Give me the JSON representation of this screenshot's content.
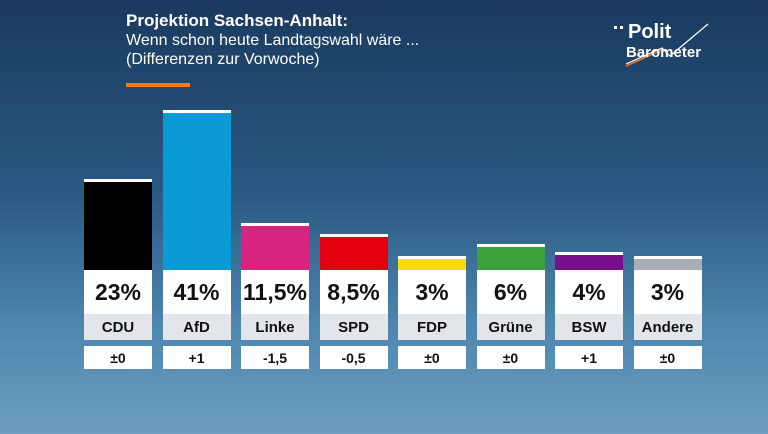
{
  "header": {
    "title": "Projektion Sachsen-Anhalt:",
    "subtitle_line1": "Wenn schon heute Landtagswahl wäre ...",
    "subtitle_line2": "(Differenzen zur Vorwoche)"
  },
  "logo": {
    "line1": "Polit",
    "line2": "Barometer",
    "accent_color": "#f07a1e"
  },
  "chart_data": {
    "type": "bar",
    "title": "Projektion Sachsen-Anhalt:",
    "categories": [
      "CDU",
      "AfD",
      "Linke",
      "SPD",
      "FDP",
      "Grüne",
      "BSW",
      "Andere"
    ],
    "values": [
      23,
      41,
      11.5,
      8.5,
      3,
      6,
      4,
      3
    ],
    "value_labels": [
      "23%",
      "41%",
      "11,5%",
      "8,5%",
      "3%",
      "6%",
      "4%",
      "3%"
    ],
    "diffs": [
      "±0",
      "+1",
      "-1,5",
      "-0,5",
      "±0",
      "±0",
      "+1",
      "±0"
    ],
    "colors": [
      "#000000",
      "#0a9ad6",
      "#d8237f",
      "#e3000f",
      "#fadc0a",
      "#3ca03c",
      "#7a0f8c",
      "#a8aeb6"
    ],
    "ylim": [
      0,
      41
    ],
    "grid": false
  }
}
